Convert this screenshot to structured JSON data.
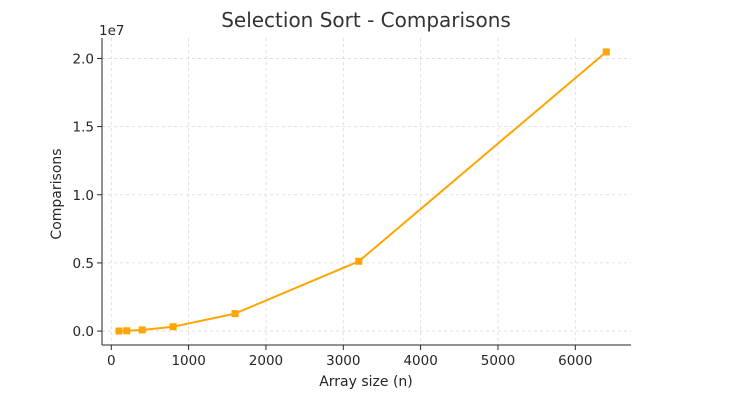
{
  "chart_data": {
    "type": "line",
    "title": "Selection Sort - Comparisons",
    "xlabel": "Array size (n)",
    "ylabel": "Comparisons",
    "y_offset_label": "1e7",
    "x": [
      100,
      200,
      400,
      800,
      1600,
      3200,
      6400
    ],
    "series": [
      {
        "values": [
          4950,
          19900,
          79800,
          319600,
          1279200,
          5118400,
          20476800
        ],
        "color": "#FFA500",
        "marker": "square"
      }
    ],
    "xlim": [
      -120,
      6720
    ],
    "ylim": [
      -1023000,
      21500000
    ],
    "x_ticks": [
      0,
      1000,
      2000,
      3000,
      4000,
      5000,
      6000
    ],
    "x_tick_labels": [
      "0",
      "1000",
      "2000",
      "3000",
      "4000",
      "5000",
      "6000"
    ],
    "y_ticks": [
      0,
      5000000,
      10000000,
      15000000,
      20000000
    ],
    "y_tick_labels": [
      "0.0",
      "0.5",
      "1.0",
      "1.5",
      "2.0"
    ],
    "grid": true,
    "spines": "left-bottom"
  }
}
